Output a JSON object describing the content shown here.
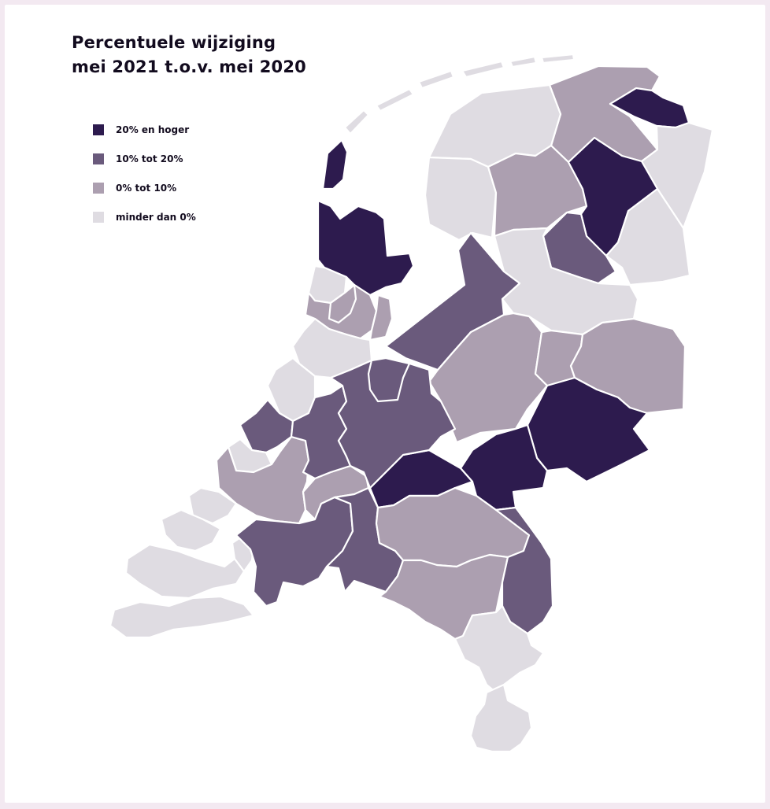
{
  "title": {
    "line1": "Percentuele wijziging",
    "line2": "mei 2021 t.o.v. mei 2020"
  },
  "legend": [
    {
      "label": "20% en hoger",
      "category": "high",
      "color": "#2d1b4e"
    },
    {
      "label": "10% tot 20%",
      "category": "mid-high",
      "color": "#6a5a7c"
    },
    {
      "label": "0% tot 10%",
      "category": "mid-low",
      "color": "#ac9fb0"
    },
    {
      "label": "minder dan 0%",
      "category": "low",
      "color": "#dfdce2"
    }
  ],
  "colors": {
    "background": "#f3e9f1",
    "card": "#ffffff",
    "border": "#ffffff",
    "text": "#120b1e"
  },
  "map": {
    "type": "choropleth",
    "regions": [
      {
        "id": "groningen-west",
        "category": "low"
      },
      {
        "id": "groningen-noord",
        "category": "mid-low"
      },
      {
        "id": "groningen-oost",
        "category": "high"
      },
      {
        "id": "groningen-zuidoost",
        "category": "low"
      },
      {
        "id": "friesland-west",
        "category": "low"
      },
      {
        "id": "friesland-midden",
        "category": "mid-low"
      },
      {
        "id": "drenthe-noord",
        "category": "high"
      },
      {
        "id": "drenthe-zuidoost",
        "category": "low"
      },
      {
        "id": "drenthe-zuidwest",
        "category": "mid-high"
      },
      {
        "id": "friesland-zuid",
        "category": "low"
      },
      {
        "id": "flevoland",
        "category": "mid-high"
      },
      {
        "id": "overijssel-noord",
        "category": "low"
      },
      {
        "id": "overijssel-west",
        "category": "mid-low"
      },
      {
        "id": "overijssel-midden",
        "category": "mid-low"
      },
      {
        "id": "twente",
        "category": "mid-low"
      },
      {
        "id": "achterhoek",
        "category": "high"
      },
      {
        "id": "gelderland-midden",
        "category": "high"
      },
      {
        "id": "betuwe",
        "category": "high"
      },
      {
        "id": "noord-holland-noord",
        "category": "high"
      },
      {
        "id": "texel",
        "category": "high"
      },
      {
        "id": "zaanstreek",
        "category": "low"
      },
      {
        "id": "kennemerland",
        "category": "mid-low"
      },
      {
        "id": "amsterdam",
        "category": "mid-low"
      },
      {
        "id": "gooi-eemland",
        "category": "mid-low"
      },
      {
        "id": "leiden",
        "category": "low"
      },
      {
        "id": "haaglanden",
        "category": "low"
      },
      {
        "id": "delft-westland",
        "category": "mid-high"
      },
      {
        "id": "rotterdam",
        "category": "mid-low"
      },
      {
        "id": "utrecht-west",
        "category": "mid-high"
      },
      {
        "id": "utrecht",
        "category": "mid-high"
      },
      {
        "id": "amersfoort",
        "category": "mid-high"
      },
      {
        "id": "drechtsteden",
        "category": "mid-low"
      },
      {
        "id": "voorne-putten",
        "category": "low"
      },
      {
        "id": "zeeland",
        "category": "low"
      },
      {
        "id": "brabant-west",
        "category": "mid-high"
      },
      {
        "id": "brabant-midden",
        "category": "mid-high"
      },
      {
        "id": "brabant-noordoost",
        "category": "mid-low"
      },
      {
        "id": "brabant-zuidoost",
        "category": "mid-low"
      },
      {
        "id": "limburg-noord",
        "category": "mid-high"
      },
      {
        "id": "limburg-midden",
        "category": "low"
      },
      {
        "id": "limburg-zuid",
        "category": "low"
      },
      {
        "id": "wadden-islands",
        "category": "low"
      }
    ]
  }
}
